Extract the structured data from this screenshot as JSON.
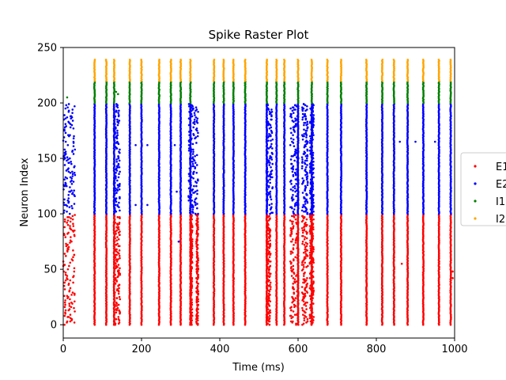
{
  "chart_data": {
    "type": "scatter",
    "title": "Spike Raster Plot",
    "xlabel": "Time (ms)",
    "ylabel": "Neuron Index",
    "xlim": [
      0,
      1000
    ],
    "ylim": [
      -12,
      250
    ],
    "xticks": [
      0,
      200,
      400,
      600,
      800,
      1000
    ],
    "yticks": [
      0,
      50,
      100,
      150,
      200,
      250
    ],
    "grid": false,
    "legend_position": "right, partially clipped",
    "legend_visible_labels": [
      "E1",
      "E2",
      "I1",
      "I2"
    ],
    "series": [
      {
        "name": "E1",
        "color": "#ff0000",
        "neuron_range": [
          0,
          99
        ],
        "sync_times": [
          80,
          110,
          130,
          170,
          200,
          245,
          275,
          300,
          325,
          385,
          410,
          435,
          465,
          520,
          545,
          565,
          600,
          635,
          675,
          710,
          775,
          815,
          845,
          880,
          920,
          960,
          990
        ],
        "scattered_bursts": [
          [
            0,
            30
          ],
          [
            130,
            145
          ],
          [
            325,
            330
          ],
          [
            340,
            345
          ],
          [
            520,
            530
          ],
          [
            580,
            600
          ],
          [
            610,
            625
          ],
          [
            630,
            640
          ]
        ],
        "isolated_spikes": [
          [
            295,
            75
          ],
          [
            435,
            68
          ],
          [
            435,
            42
          ],
          [
            865,
            55
          ],
          [
            995,
            48
          ],
          [
            995,
            42
          ]
        ]
      },
      {
        "name": "E2",
        "color": "#0000ff",
        "neuron_range": [
          100,
          199
        ],
        "sync_times": [
          80,
          110,
          130,
          170,
          200,
          245,
          275,
          300,
          325,
          385,
          410,
          435,
          465,
          520,
          545,
          565,
          600,
          635,
          675,
          710,
          775,
          815,
          845,
          880,
          920,
          960,
          990
        ],
        "scattered_bursts": [
          [
            0,
            30
          ],
          [
            130,
            145
          ],
          [
            320,
            345
          ],
          [
            520,
            535
          ],
          [
            580,
            600
          ],
          [
            610,
            625
          ],
          [
            630,
            640
          ]
        ],
        "isolated_spikes": [
          [
            185,
            162
          ],
          [
            215,
            162
          ],
          [
            185,
            108
          ],
          [
            215,
            108
          ],
          [
            300,
            190
          ],
          [
            325,
            190
          ],
          [
            285,
            162
          ],
          [
            290,
            120
          ],
          [
            295,
            75
          ],
          [
            860,
            165
          ],
          [
            900,
            165
          ],
          [
            950,
            165
          ]
        ]
      },
      {
        "name": "I1",
        "color": "#008000",
        "neuron_range": [
          200,
          219
        ],
        "sync_times": [
          80,
          110,
          130,
          170,
          200,
          245,
          275,
          300,
          325,
          385,
          410,
          435,
          465,
          520,
          545,
          565,
          600,
          635,
          675,
          710,
          775,
          815,
          845,
          880,
          920,
          960,
          990
        ],
        "isolated_spikes": [
          [
            10,
            205
          ],
          [
            135,
            210
          ],
          [
            140,
            208
          ]
        ]
      },
      {
        "name": "I2",
        "color": "#ffa500",
        "neuron_range": [
          220,
          239
        ],
        "sync_times": [
          80,
          110,
          130,
          170,
          200,
          245,
          275,
          300,
          325,
          385,
          410,
          435,
          465,
          520,
          545,
          565,
          600,
          635,
          675,
          710,
          775,
          815,
          845,
          880,
          920,
          960,
          990
        ],
        "isolated_spikes": []
      }
    ]
  }
}
